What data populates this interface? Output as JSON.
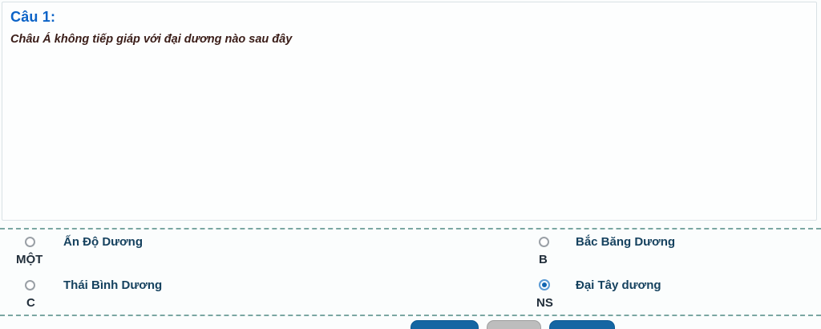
{
  "question": {
    "number_label": "Câu 1:",
    "text": "Châu Á không tiếp giáp với đại dương nào sau đây"
  },
  "options": [
    {
      "letter": "MỘT",
      "label": "Ấn Độ Dương",
      "selected": false
    },
    {
      "letter": "B",
      "label": "Bắc Băng Dương",
      "selected": false
    },
    {
      "letter": "C",
      "label": "Thái Bình Dương",
      "selected": false
    },
    {
      "letter": "NS",
      "label": "Đại Tây dương",
      "selected": true
    }
  ],
  "colors": {
    "question_number": "#0c63c7",
    "question_text": "#3a1d18",
    "option_label": "#16425f",
    "option_letter": "#222f3b",
    "radio_selected_ring": "#5b9bd5",
    "radio_selected_dot": "#1266b1",
    "divider_dashed": "#7aa7a2",
    "button_primary": "#1566a3",
    "button_secondary": "#bdbdbd",
    "panel_border": "#d9e1e5"
  }
}
